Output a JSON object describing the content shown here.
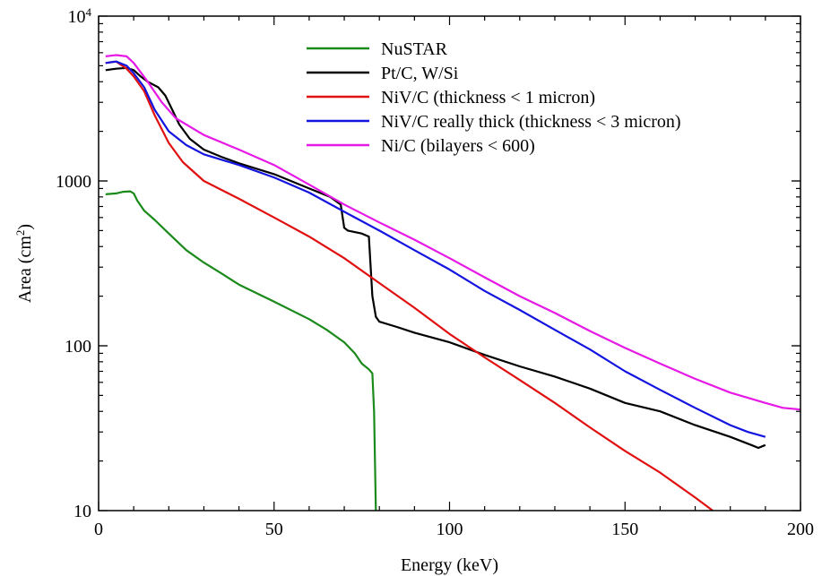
{
  "chart_data": {
    "type": "line",
    "title": "",
    "xlabel": "Energy (keV)",
    "ylabel_text": "Area (cm",
    "ylabel_sup": "2",
    "ylabel_close": ")",
    "xlim": [
      0,
      200
    ],
    "ylim": [
      10,
      10000
    ],
    "yscale": "log",
    "grid": false,
    "legend_position": "top-center",
    "x_ticks": [
      {
        "value": 0,
        "label": "0"
      },
      {
        "value": 50,
        "label": "50"
      },
      {
        "value": 100,
        "label": "100"
      },
      {
        "value": 150,
        "label": "150"
      },
      {
        "value": 200,
        "label": "200"
      }
    ],
    "y_ticks": [
      {
        "value": 10,
        "label": "10"
      },
      {
        "value": 100,
        "label": "100"
      },
      {
        "value": 1000,
        "label": "1000"
      }
    ],
    "y_top_tick": {
      "value": 10000,
      "base": "10",
      "exp": "4"
    },
    "series": [
      {
        "name": "NuSTAR",
        "color": "#1a8a1a",
        "points": [
          [
            2,
            830
          ],
          [
            5,
            840
          ],
          [
            7,
            860
          ],
          [
            9,
            865
          ],
          [
            10,
            840
          ],
          [
            11,
            760
          ],
          [
            13,
            660
          ],
          [
            16,
            580
          ],
          [
            20,
            480
          ],
          [
            25,
            380
          ],
          [
            30,
            320
          ],
          [
            35,
            275
          ],
          [
            40,
            235
          ],
          [
            50,
            185
          ],
          [
            60,
            145
          ],
          [
            65,
            125
          ],
          [
            70,
            105
          ],
          [
            73,
            90
          ],
          [
            75,
            78
          ],
          [
            77,
            72
          ],
          [
            78,
            68
          ],
          [
            78.5,
            40
          ],
          [
            79,
            10
          ]
        ]
      },
      {
        "name": "Pt/C, W/Si",
        "color": "#000000",
        "points": [
          [
            2,
            4700
          ],
          [
            5,
            4800
          ],
          [
            8,
            4850
          ],
          [
            10,
            4700
          ],
          [
            12,
            4300
          ],
          [
            14,
            4000
          ],
          [
            17,
            3700
          ],
          [
            19,
            3300
          ],
          [
            21,
            2700
          ],
          [
            23,
            2200
          ],
          [
            26,
            1800
          ],
          [
            30,
            1550
          ],
          [
            35,
            1400
          ],
          [
            40,
            1280
          ],
          [
            50,
            1100
          ],
          [
            60,
            900
          ],
          [
            66,
            800
          ],
          [
            69,
            720
          ],
          [
            70,
            520
          ],
          [
            71,
            500
          ],
          [
            75,
            480
          ],
          [
            77,
            460
          ],
          [
            78,
            200
          ],
          [
            79,
            150
          ],
          [
            80,
            140
          ],
          [
            85,
            130
          ],
          [
            90,
            120
          ],
          [
            100,
            105
          ],
          [
            110,
            88
          ],
          [
            120,
            75
          ],
          [
            130,
            65
          ],
          [
            140,
            55
          ],
          [
            150,
            45
          ],
          [
            160,
            40
          ],
          [
            170,
            33
          ],
          [
            180,
            28
          ],
          [
            186,
            25
          ],
          [
            188,
            24
          ],
          [
            190,
            25
          ]
        ]
      },
      {
        "name": "NiV/C (thickness < 1 micron)",
        "color": "#e01010",
        "points": [
          [
            2,
            5200
          ],
          [
            5,
            5300
          ],
          [
            8,
            4800
          ],
          [
            10,
            4300
          ],
          [
            13,
            3500
          ],
          [
            16,
            2500
          ],
          [
            20,
            1700
          ],
          [
            24,
            1300
          ],
          [
            30,
            1000
          ],
          [
            40,
            780
          ],
          [
            50,
            600
          ],
          [
            60,
            460
          ],
          [
            70,
            340
          ],
          [
            80,
            240
          ],
          [
            90,
            170
          ],
          [
            100,
            118
          ],
          [
            110,
            85
          ],
          [
            120,
            62
          ],
          [
            130,
            45
          ],
          [
            140,
            32
          ],
          [
            150,
            23
          ],
          [
            160,
            17
          ],
          [
            170,
            12
          ],
          [
            175,
            10
          ]
        ]
      },
      {
        "name": "NiV/C really thick (thickness < 3 micron)",
        "color": "#1414e0",
        "points": [
          [
            2,
            5200
          ],
          [
            5,
            5300
          ],
          [
            8,
            5000
          ],
          [
            10,
            4500
          ],
          [
            13,
            3700
          ],
          [
            16,
            2700
          ],
          [
            20,
            2000
          ],
          [
            25,
            1650
          ],
          [
            30,
            1450
          ],
          [
            40,
            1250
          ],
          [
            50,
            1050
          ],
          [
            60,
            850
          ],
          [
            70,
            650
          ],
          [
            80,
            500
          ],
          [
            90,
            380
          ],
          [
            100,
            290
          ],
          [
            110,
            215
          ],
          [
            120,
            165
          ],
          [
            130,
            125
          ],
          [
            140,
            95
          ],
          [
            150,
            70
          ],
          [
            160,
            54
          ],
          [
            170,
            42
          ],
          [
            180,
            33
          ],
          [
            185,
            30
          ],
          [
            190,
            28
          ]
        ]
      },
      {
        "name": "Ni/C (bilayers < 600)",
        "color": "#e619e6",
        "points": [
          [
            2,
            5700
          ],
          [
            5,
            5800
          ],
          [
            8,
            5700
          ],
          [
            10,
            5200
          ],
          [
            14,
            4000
          ],
          [
            18,
            3000
          ],
          [
            22,
            2400
          ],
          [
            30,
            1900
          ],
          [
            40,
            1550
          ],
          [
            50,
            1250
          ],
          [
            60,
            950
          ],
          [
            70,
            720
          ],
          [
            80,
            560
          ],
          [
            90,
            440
          ],
          [
            100,
            340
          ],
          [
            110,
            260
          ],
          [
            120,
            200
          ],
          [
            130,
            158
          ],
          [
            140,
            123
          ],
          [
            150,
            97
          ],
          [
            160,
            78
          ],
          [
            170,
            63
          ],
          [
            180,
            52
          ],
          [
            190,
            45
          ],
          [
            195,
            42
          ],
          [
            200,
            41
          ]
        ]
      }
    ]
  }
}
